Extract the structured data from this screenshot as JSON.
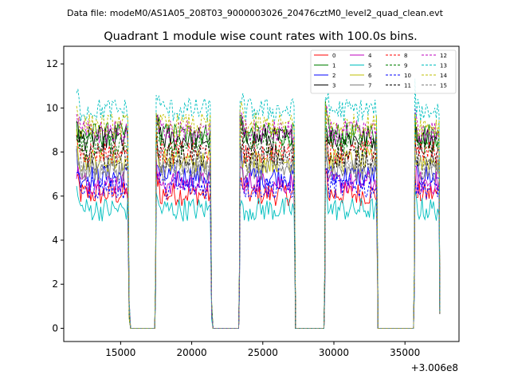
{
  "header": {
    "data_file": "Data file: modeM0/AS1A05_208T03_9000003026_20476cztM0_level2_quad_clean.evt"
  },
  "chart_data": {
    "type": "line",
    "title": "Quadrant 1 module wise count rates with 100.0s bins.",
    "xlabel": "",
    "ylabel": "",
    "offset_text": "+3.006e8",
    "xlim": [
      11000,
      38800
    ],
    "ylim": [
      -0.6,
      12.8
    ],
    "xticks": [
      15000,
      20000,
      25000,
      30000,
      35000
    ],
    "xtick_labels": [
      "15000",
      "20000",
      "25000",
      "30000",
      "35000"
    ],
    "yticks": [
      0,
      2,
      4,
      6,
      8,
      10,
      12
    ],
    "ytick_labels": [
      "0",
      "2",
      "4",
      "6",
      "8",
      "10",
      "12"
    ],
    "legend_position": "top-right",
    "segments": [
      [
        11900,
        15500
      ],
      [
        17500,
        21300
      ],
      [
        23400,
        27200
      ],
      [
        29400,
        33000
      ],
      [
        35700,
        37400
      ]
    ],
    "gaps": [
      [
        15700,
        17400
      ],
      [
        21500,
        23300
      ],
      [
        27300,
        29300
      ],
      [
        33100,
        35600
      ]
    ],
    "series": [
      {
        "name": "0",
        "color": "#ff0000",
        "dashed": false,
        "level": 6.1
      },
      {
        "name": "1",
        "color": "#008000",
        "dashed": false,
        "level": 8.8
      },
      {
        "name": "2",
        "color": "#0000ff",
        "dashed": false,
        "level": 6.9
      },
      {
        "name": "3",
        "color": "#000000",
        "dashed": false,
        "level": 8.6
      },
      {
        "name": "4",
        "color": "#bf00bf",
        "dashed": false,
        "level": 6.6
      },
      {
        "name": "5",
        "color": "#00bfbf",
        "dashed": false,
        "level": 5.4
      },
      {
        "name": "6",
        "color": "#bfbf00",
        "dashed": false,
        "level": 7.6
      },
      {
        "name": "7",
        "color": "#808080",
        "dashed": false,
        "level": 7.2
      },
      {
        "name": "8",
        "color": "#ff0000",
        "dashed": true,
        "level": 8.0
      },
      {
        "name": "9",
        "color": "#008000",
        "dashed": true,
        "level": 8.4
      },
      {
        "name": "10",
        "color": "#0000ff",
        "dashed": true,
        "level": 6.4
      },
      {
        "name": "11",
        "color": "#000000",
        "dashed": true,
        "level": 7.8
      },
      {
        "name": "12",
        "color": "#bf00bf",
        "dashed": true,
        "level": 8.9
      },
      {
        "name": "13",
        "color": "#00bfbf",
        "dashed": true,
        "level": 9.9
      },
      {
        "name": "14",
        "color": "#bfbf00",
        "dashed": true,
        "level": 9.2
      },
      {
        "name": "15",
        "color": "#808080",
        "dashed": true,
        "level": 7.4
      }
    ]
  }
}
